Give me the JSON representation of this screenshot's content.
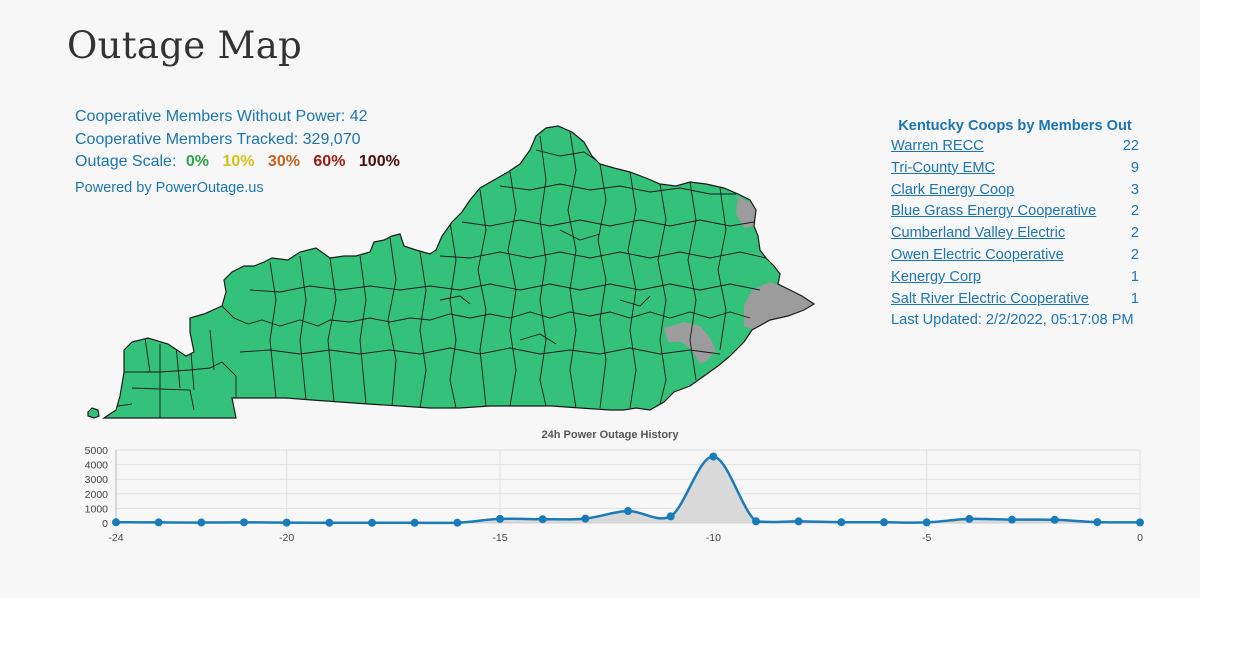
{
  "page": {
    "title": "Outage Map"
  },
  "stats": {
    "without_power_label": "Cooperative Members Without Power: 42",
    "tracked_label": "Cooperative Members Tracked: 329,070",
    "scale_label": "Outage Scale:",
    "scale": [
      {
        "label": "0%",
        "color": "#2ea44f"
      },
      {
        "label": "10%",
        "color": "#d4c11a"
      },
      {
        "label": "30%",
        "color": "#c4621a"
      },
      {
        "label": "60%",
        "color": "#9a1c12"
      },
      {
        "label": "100%",
        "color": "#4a0d08"
      }
    ],
    "powered_by": "Powered by PowerOutage.us"
  },
  "map": {
    "fill_ok": "#34c17a",
    "fill_unknown": "#9c9c9c",
    "stroke": "#1a1a1a"
  },
  "coops": {
    "title": "Kentucky Coops by Members Out",
    "rows": [
      {
        "name": "Warren RECC",
        "count": "22"
      },
      {
        "name": "Tri-County EMC",
        "count": "9"
      },
      {
        "name": "Clark Energy Coop",
        "count": "3"
      },
      {
        "name": "Blue Grass Energy Cooperative",
        "count": "2"
      },
      {
        "name": "Cumberland Valley Electric",
        "count": "2"
      },
      {
        "name": "Owen Electric Cooperative",
        "count": "2"
      },
      {
        "name": "Kenergy Corp",
        "count": "1"
      },
      {
        "name": "Salt River Electric Cooperative",
        "count": "1"
      }
    ],
    "updated": "Last Updated: 2/2/2022, 05:17:08 PM"
  },
  "chart_data": {
    "type": "area",
    "title": "24h Power Outage History",
    "x": [
      -24,
      -23,
      -22,
      -21,
      -20,
      -19,
      -18,
      -17,
      -16,
      -15,
      -14,
      -13,
      -12,
      -11,
      -10,
      -9,
      -8,
      -7,
      -6,
      -5,
      -4,
      -3,
      -2,
      -1,
      0
    ],
    "values": [
      50,
      40,
      30,
      45,
      25,
      20,
      15,
      15,
      20,
      280,
      260,
      300,
      820,
      450,
      4550,
      120,
      110,
      55,
      50,
      40,
      280,
      230,
      220,
      60,
      40
    ],
    "xticks": [
      "-24",
      "-20",
      "-15",
      "-10",
      "-5",
      "0"
    ],
    "yticks": [
      "0",
      "1000",
      "2000",
      "3000",
      "4000",
      "5000"
    ],
    "xlim": [
      -24,
      0
    ],
    "ylim": [
      0,
      5000
    ],
    "grid": true,
    "line_color": "#1a7bb9",
    "fill_color": "#d9d9d9"
  }
}
